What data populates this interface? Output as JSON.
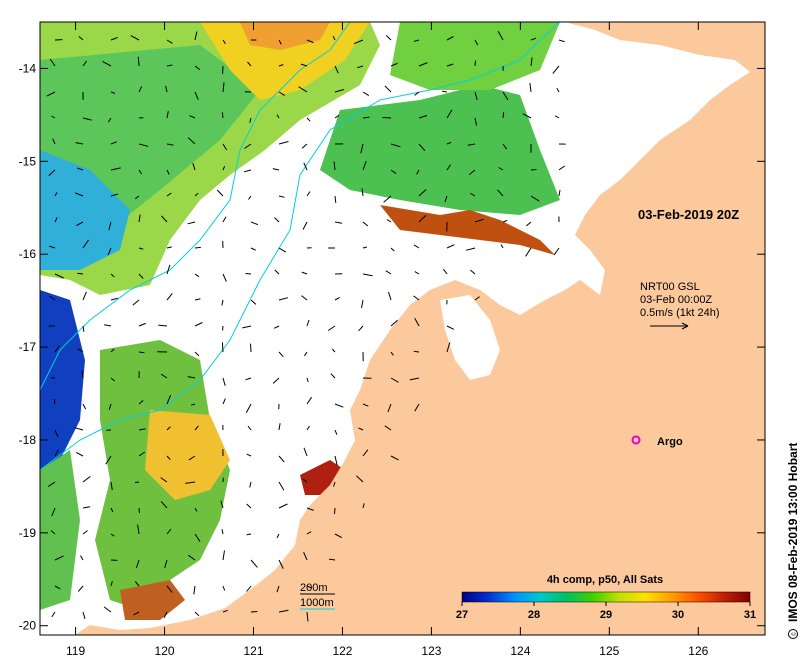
{
  "map": {
    "lon_labels": [
      "119",
      "120",
      "121",
      "122",
      "123",
      "124",
      "125",
      "126"
    ],
    "lat_labels": [
      "-14",
      "-15",
      "-16",
      "-17",
      "-18",
      "-19",
      "-20"
    ],
    "lon_range": [
      118.6,
      126.75
    ],
    "lat_range": [
      -20.1,
      -13.5
    ],
    "land_color": "#fbc99c",
    "ocean_nodata_color": "#ffffff",
    "date_label": "03-Feb-2019 20Z",
    "current_legend": {
      "line1": "NRT00 GSL",
      "line2": "03-Feb 00:00Z",
      "line3": "0.5m/s (1kt 24h)"
    },
    "argo": {
      "label": "Argo",
      "lon": 125.3,
      "lat": -18.0,
      "color": "#e000e0"
    },
    "isobaths": {
      "label_200": "200m",
      "label_1000": "1000m",
      "color": "#00d0e0"
    },
    "side_caption": "IMOS 08-Feb-2019 13:00 Hobart",
    "copyright_icon": "copyright-icon"
  },
  "colorbar": {
    "title": "4h comp, p50, All Sats",
    "ticks": [
      "27",
      "28",
      "29",
      "30",
      "31"
    ],
    "min": 27,
    "max": 31,
    "colors": [
      "#000080",
      "#0030d0",
      "#0090ff",
      "#00c8c8",
      "#00c060",
      "#40d000",
      "#c0e000",
      "#ffe000",
      "#ffa000",
      "#ff5000",
      "#c02000",
      "#800000"
    ]
  }
}
